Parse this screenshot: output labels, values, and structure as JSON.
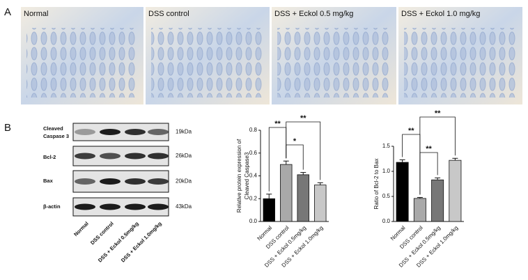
{
  "panel_labels": [
    "A",
    "B"
  ],
  "histology": {
    "labels": [
      "Normal",
      "DSS control",
      "DSS + Eckol 0.5 mg/kg",
      "DSS + Eckol 1.0 mg/kg"
    ]
  },
  "blot": {
    "proteins": [
      [
        "Cleaved",
        "Caspase 3"
      ],
      [
        "Bcl-2"
      ],
      [
        "Bax"
      ],
      [
        "β-actin"
      ]
    ],
    "sizes": [
      "19kDa",
      "26kDa",
      "20kDa",
      "43kDa"
    ],
    "lanes": [
      "Normal",
      "DSS control",
      "DSS + Eckol 0.5mg/kg",
      "DSS + Eckol 1.0mg/kg"
    ]
  },
  "chart_data": [
    {
      "type": "bar",
      "ylabel": [
        "Relative protein expression of",
        "Cleaved Caspase3"
      ],
      "categories": [
        "Normal",
        "DSS control",
        "DSS + Eckol 0.5mg/kg",
        "DSS + Eckol 1.0mg/kg"
      ],
      "values": [
        0.2,
        0.5,
        0.41,
        0.32
      ],
      "errors": [
        0.04,
        0.03,
        0.02,
        0.02
      ],
      "colors": [
        "#000000",
        "#a9a9a9",
        "#777777",
        "#c8c8c8"
      ],
      "ylim": [
        0,
        0.8
      ],
      "yticks": [
        {
          "value": 0,
          "label": "0.0"
        },
        {
          "value": 0.2,
          "label": "0.2"
        },
        {
          "value": 0.4,
          "label": "0.4"
        },
        {
          "value": 0.6,
          "label": "0.6"
        },
        {
          "value": 0.8,
          "label": "0.8"
        }
      ],
      "significance": [
        {
          "pair": [
            "Normal",
            "DSS control"
          ],
          "label": "**"
        },
        {
          "pair": [
            "DSS control",
            "DSS + Eckol 0.5mg/kg"
          ],
          "label": "*"
        },
        {
          "pair": [
            "DSS control",
            "DSS + Eckol 1.0mg/kg"
          ],
          "label": "**"
        }
      ]
    },
    {
      "type": "bar",
      "ylabel": [
        "Ratio of Bcl-2 to Bax"
      ],
      "categories": [
        "Normal",
        "DSS control",
        "DSS + Eckol 0.5mg/kg",
        "DSS + Eckol 1.0mg/kg"
      ],
      "values": [
        1.18,
        0.46,
        0.83,
        1.22
      ],
      "errors": [
        0.05,
        0.02,
        0.04,
        0.04
      ],
      "colors": [
        "#000000",
        "#a9a9a9",
        "#777777",
        "#c8c8c8"
      ],
      "ylim": [
        0,
        1.5
      ],
      "yticks": [
        {
          "value": 0,
          "label": "0.0"
        },
        {
          "value": 0.5,
          "label": "0.5"
        },
        {
          "value": 1,
          "label": "1.0"
        },
        {
          "value": 1.5,
          "label": "1.5"
        }
      ],
      "significance": [
        {
          "pair": [
            "Normal",
            "DSS control"
          ],
          "label": "**"
        },
        {
          "pair": [
            "DSS control",
            "DSS + Eckol 0.5mg/kg"
          ],
          "label": "**"
        },
        {
          "pair": [
            "DSS control",
            "DSS + Eckol 1.0mg/kg"
          ],
          "label": "**"
        }
      ]
    }
  ]
}
